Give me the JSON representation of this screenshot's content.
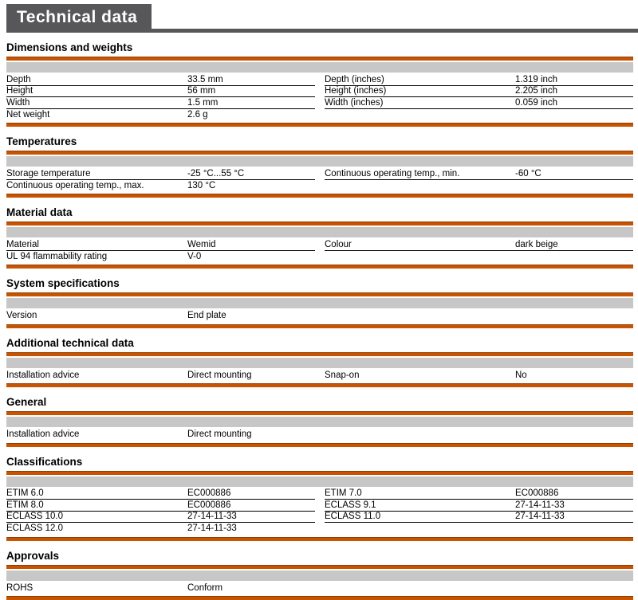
{
  "page": {
    "title": "Technical data",
    "colors": {
      "accent_orange": "#c85301",
      "accent_orange_dark": "#8f3e05",
      "band_gray": "#c7c7c7",
      "header_gray": "#57575a"
    }
  },
  "sections": [
    {
      "heading": "Dimensions and weights",
      "left_rows": [
        {
          "label": "Depth",
          "value": "33.5 mm"
        },
        {
          "label": "Height",
          "value": "56 mm"
        },
        {
          "label": "Width",
          "value": "1.5 mm"
        },
        {
          "label": "Net weight",
          "value": "2.6 g"
        }
      ],
      "right_rows": [
        {
          "label": "Depth (inches)",
          "value": "1.319 inch"
        },
        {
          "label": "Height (inches)",
          "value": "2.205 inch"
        },
        {
          "label": "Width (inches)",
          "value": "0.059 inch"
        }
      ]
    },
    {
      "heading": "Temperatures",
      "left_rows": [
        {
          "label": "Storage temperature",
          "value": "-25 °C...55 °C"
        },
        {
          "label": "Continuous operating temp., max.",
          "value": "130 °C"
        }
      ],
      "right_rows": [
        {
          "label": "Continuous operating temp., min.",
          "value": "-60 °C"
        }
      ]
    },
    {
      "heading": "Material data",
      "left_rows": [
        {
          "label": "Material",
          "value": "Wemid"
        },
        {
          "label": "UL 94 flammability rating",
          "value": "V-0"
        }
      ],
      "right_rows": [
        {
          "label": "Colour",
          "value": "dark beige"
        }
      ]
    },
    {
      "heading": "System specifications",
      "left_rows": [
        {
          "label": "Version",
          "value": "End plate"
        }
      ],
      "right_rows": []
    },
    {
      "heading": "Additional technical data",
      "left_rows": [
        {
          "label": "Installation advice",
          "value": "Direct mounting"
        }
      ],
      "right_rows": [
        {
          "label": "Snap-on",
          "value": "No"
        }
      ]
    },
    {
      "heading": "General",
      "left_rows": [
        {
          "label": "Installation advice",
          "value": "Direct mounting"
        }
      ],
      "right_rows": []
    },
    {
      "heading": "Classifications",
      "left_rows": [
        {
          "label": "ETIM 6.0",
          "value": "EC000886"
        },
        {
          "label": "ETIM 8.0",
          "value": "EC000886"
        },
        {
          "label": "ECLASS 10.0",
          "value": "27-14-11-33"
        },
        {
          "label": "ECLASS 12.0",
          "value": "27-14-11-33"
        }
      ],
      "right_rows": [
        {
          "label": "ETIM 7.0",
          "value": "EC000886"
        },
        {
          "label": "ECLASS 9.1",
          "value": "27-14-11-33"
        },
        {
          "label": "ECLASS 11.0",
          "value": "27-14-11-33"
        }
      ]
    },
    {
      "heading": "Approvals",
      "left_rows": [
        {
          "label": "ROHS",
          "value": "Conform"
        }
      ],
      "right_rows": []
    }
  ]
}
